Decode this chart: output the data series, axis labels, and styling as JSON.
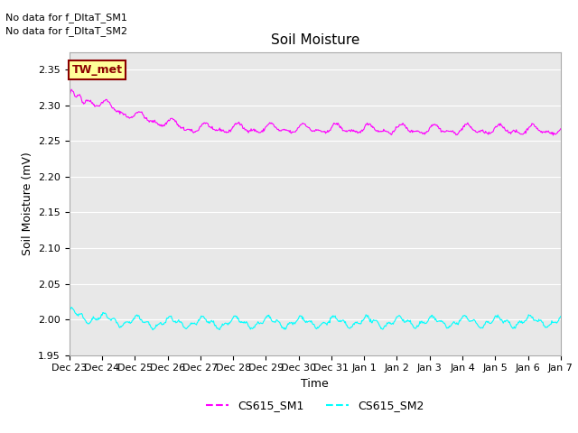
{
  "title": "Soil Moisture",
  "ylabel": "Soil Moisture (mV)",
  "xlabel": "Time",
  "ylim": [
    1.95,
    2.375
  ],
  "yticks": [
    1.95,
    2.0,
    2.05,
    2.1,
    2.15,
    2.2,
    2.25,
    2.3,
    2.35
  ],
  "x_tick_labels": [
    "Dec 23",
    "Dec 24",
    "Dec 25",
    "Dec 26",
    "Dec 27",
    "Dec 28",
    "Dec 29",
    "Dec 30",
    "Dec 31",
    "Jan 1",
    "Jan 2",
    "Jan 3",
    "Jan 4",
    "Jan 5",
    "Jan 6",
    "Jan 7"
  ],
  "no_data_text1": "No data for f_DltaT_SM1",
  "no_data_text2": "No data for f_DltaT_SM2",
  "tw_met_label": "TW_met",
  "legend_labels": [
    "CS615_SM1",
    "CS615_SM2"
  ],
  "sm1_color": "#FF00FF",
  "sm2_color": "#00FFFF",
  "bg_color": "#E8E8E8",
  "tw_met_bg": "#FFFF99",
  "tw_met_border": "#8B0000",
  "tw_met_text_color": "#8B0000"
}
